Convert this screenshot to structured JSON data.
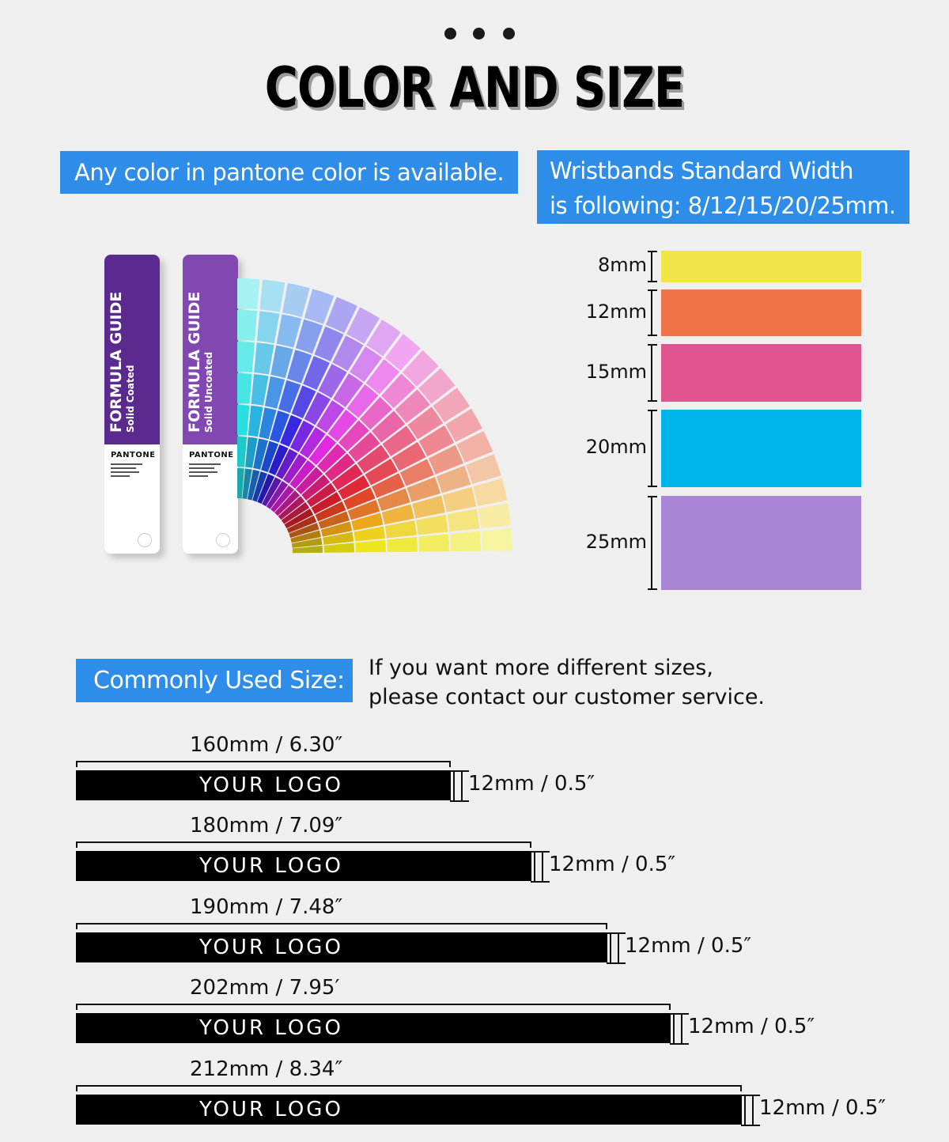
{
  "header": {
    "dots": [
      "•",
      "•",
      "•"
    ],
    "title": "COLOR AND SIZE"
  },
  "pantone_note": "Any color in pantone color is available.",
  "width_note": {
    "line1": "Wristbands Standard Width",
    "line2": "is following: 8/12/15/20/25mm."
  },
  "pantone_guides": [
    {
      "title": "FORMULA GUIDE",
      "subtitle": "Solid Coated",
      "brand": "PANTONE",
      "color": "#5a2a8e"
    },
    {
      "title": "FORMULA GUIDE",
      "subtitle": "Solid Uncoated",
      "brand": "PANTONE",
      "color": "#8048b0"
    }
  ],
  "widths": [
    {
      "label": "8mm",
      "color": "#f1e44a"
    },
    {
      "label": "12mm",
      "color": "#f07449"
    },
    {
      "label": "15mm",
      "color": "#e0558f"
    },
    {
      "label": "20mm",
      "color": "#00b5eb"
    },
    {
      "label": "25mm",
      "color": "#ab85d5"
    }
  ],
  "common": {
    "label": "Commonly Used Size:",
    "contact_line1": "If you want more different sizes,",
    "contact_line2": "please contact our customer service."
  },
  "straps": [
    {
      "length": "160mm / 6.30″",
      "logo": "YOUR LOGO",
      "width": "12mm / 0.5″"
    },
    {
      "length": "180mm / 7.09″",
      "logo": "YOUR LOGO",
      "width": "12mm / 0.5″"
    },
    {
      "length": "190mm / 7.48″",
      "logo": "YOUR LOGO",
      "width": "12mm / 0.5″"
    },
    {
      "length": "202mm / 7.95′",
      "logo": "YOUR LOGO",
      "width": "12mm / 0.5″"
    },
    {
      "length": "212mm / 8.34″",
      "logo": "YOUR LOGO",
      "width": "12mm / 0.5″"
    }
  ]
}
